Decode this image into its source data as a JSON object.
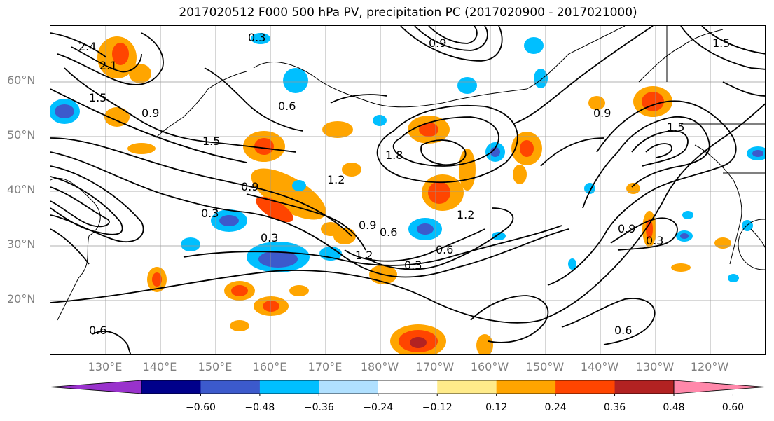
{
  "title": "2017020512 F000 500 hPa PV, precipitation PC (2017020900 - 2017021000)",
  "lat_labels": [
    "60°N",
    "50°N",
    "40°N",
    "30°N",
    "20°N"
  ],
  "lon_labels": [
    "130°E",
    "140°E",
    "150°E",
    "160°E",
    "170°E",
    "180°W",
    "170°W",
    "160°W",
    "150°W",
    "140°W",
    "130°W",
    "120°W"
  ],
  "colorbar": {
    "tick_labels": [
      "−0.60",
      "−0.48",
      "−0.36",
      "−0.24",
      "−0.12",
      "0.12",
      "0.24",
      "0.36",
      "0.48",
      "0.60"
    ],
    "colors": [
      "#9932cc",
      "#00008b",
      "#3c5acc",
      "#00bfff",
      "#b0e0ff",
      "#ffffff",
      "#ffeb8a",
      "#ffa500",
      "#ff4500",
      "#b22222",
      "#ff88aa"
    ]
  },
  "contour_labels": [
    "0.3",
    "0.6",
    "0.9",
    "1.2",
    "1.5",
    "1.8",
    "2.1",
    "2.4"
  ],
  "colors": {
    "grid": "#999999",
    "contour": "#000000",
    "axis_label": "#808080"
  }
}
